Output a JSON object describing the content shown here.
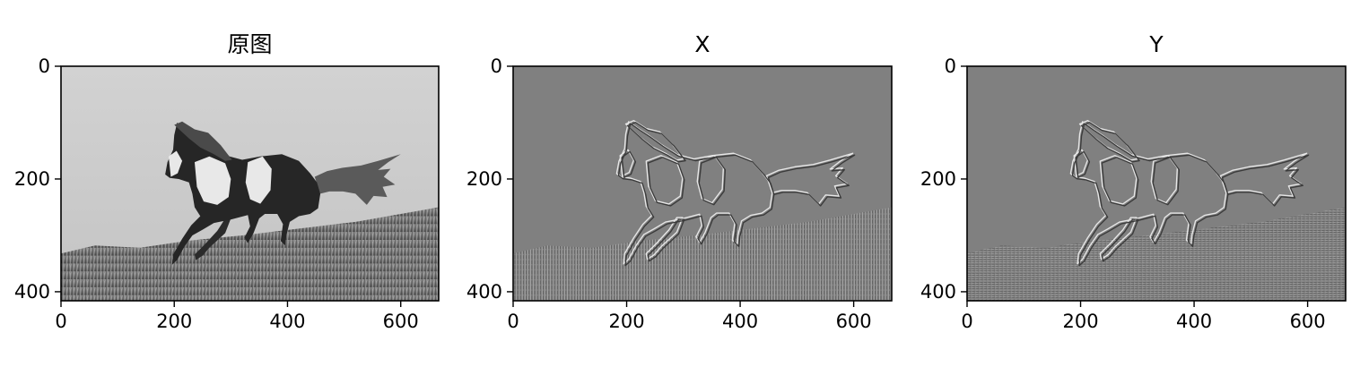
{
  "chart_data": [
    {
      "type": "image",
      "title": "原图",
      "image_size": [
        667,
        416
      ],
      "xlim": [
        0,
        667
      ],
      "ylim": [
        416,
        0
      ],
      "x_ticks": [
        0,
        200,
        400,
        600
      ],
      "y_ticks": [
        0,
        200,
        400
      ],
      "x_tick_labels": [
        "0",
        "200",
        "400",
        "600"
      ],
      "y_tick_labels": [
        "0",
        "200",
        "400"
      ],
      "colormap": "gray",
      "content": "horse"
    },
    {
      "type": "image",
      "title": "X",
      "image_size": [
        667,
        416
      ],
      "xlim": [
        0,
        667
      ],
      "ylim": [
        416,
        0
      ],
      "x_ticks": [
        0,
        200,
        400,
        600
      ],
      "y_ticks": [
        0,
        200,
        400
      ],
      "x_tick_labels": [
        "0",
        "200",
        "400",
        "600"
      ],
      "y_tick_labels": [
        "0",
        "200",
        "400"
      ],
      "colormap": "gray",
      "content": "edges-x"
    },
    {
      "type": "image",
      "title": "Y",
      "image_size": [
        667,
        416
      ],
      "xlim": [
        0,
        667
      ],
      "ylim": [
        416,
        0
      ],
      "x_ticks": [
        0,
        200,
        400,
        600
      ],
      "y_ticks": [
        0,
        200,
        400
      ],
      "x_tick_labels": [
        "0",
        "200",
        "400",
        "600"
      ],
      "y_tick_labels": [
        "0",
        "200",
        "400"
      ],
      "colormap": "gray",
      "content": "edges-y"
    }
  ]
}
